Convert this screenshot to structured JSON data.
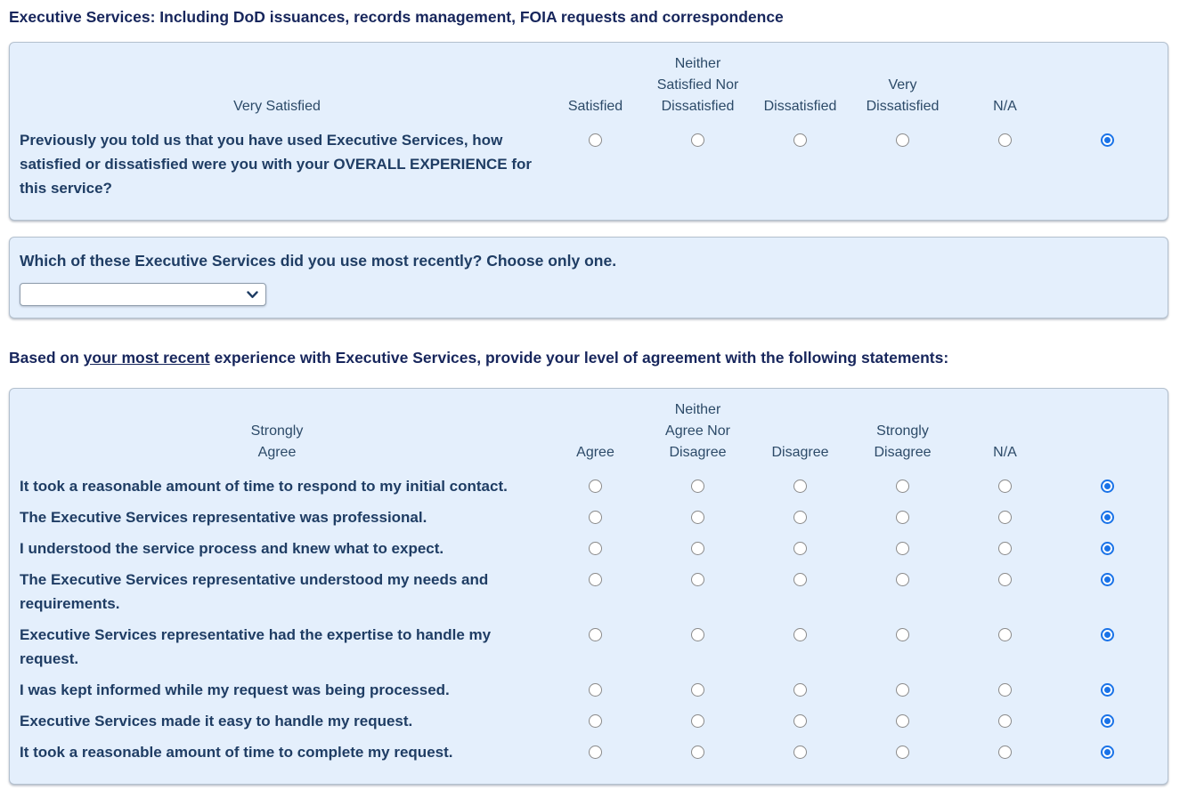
{
  "page": {
    "title": "Executive Services: Including DoD issuances, records management, FOIA requests and correspondence"
  },
  "colors": {
    "panel_bg": "#e4effc",
    "panel_border": "#b3c0ce",
    "text_navy": "#1f3d64",
    "radio_selected_blue": "#1a73e8"
  },
  "satisfaction_matrix": {
    "columns": [
      "Very Satisfied",
      "Satisfied",
      "Neither Satisfied Nor Dissatisfied",
      "Dissatisfied",
      "Very Dissatisfied",
      "N/A"
    ],
    "rows": [
      {
        "text": "Previously you told us that you have used Executive Services, how satisfied or dissatisfied were you with your OVERALL EXPERIENCE for this service?",
        "selected": "N/A"
      }
    ]
  },
  "recent_service": {
    "question_prefix": "Which of these Executive Services did you use ",
    "question_bold": "most recently",
    "question_suffix": "? Choose only one.",
    "dropdown_value": ""
  },
  "agreement_intro": {
    "prefix": "Based on ",
    "emphasis_bold": "your",
    "emphasis_underline": " most recent",
    "suffix": " experience with Executive Services, provide your level of agreement with the following statements:"
  },
  "agreement_matrix": {
    "columns": [
      "Strongly Agree",
      "Agree",
      "Neither Agree Nor Disagree",
      "Disagree",
      "Strongly Disagree",
      "N/A"
    ],
    "rows": [
      {
        "text": "It took a reasonable amount of time to respond to my initial contact.",
        "selected": "N/A"
      },
      {
        "text": "The Executive Services representative was professional.",
        "selected": "N/A"
      },
      {
        "text": "I understood the service process and knew what to expect.",
        "selected": "N/A"
      },
      {
        "text": "The Executive Services representative understood my needs and requirements.",
        "selected": "N/A"
      },
      {
        "text": "Executive Services representative had the expertise to handle my request.",
        "selected": "N/A"
      },
      {
        "text": "I was kept informed while my request was being processed.",
        "selected": "N/A"
      },
      {
        "text": "Executive Services made it easy to handle my request.",
        "selected": "N/A"
      },
      {
        "text": "It took a reasonable amount of time to complete my request.",
        "selected": "N/A"
      }
    ]
  }
}
